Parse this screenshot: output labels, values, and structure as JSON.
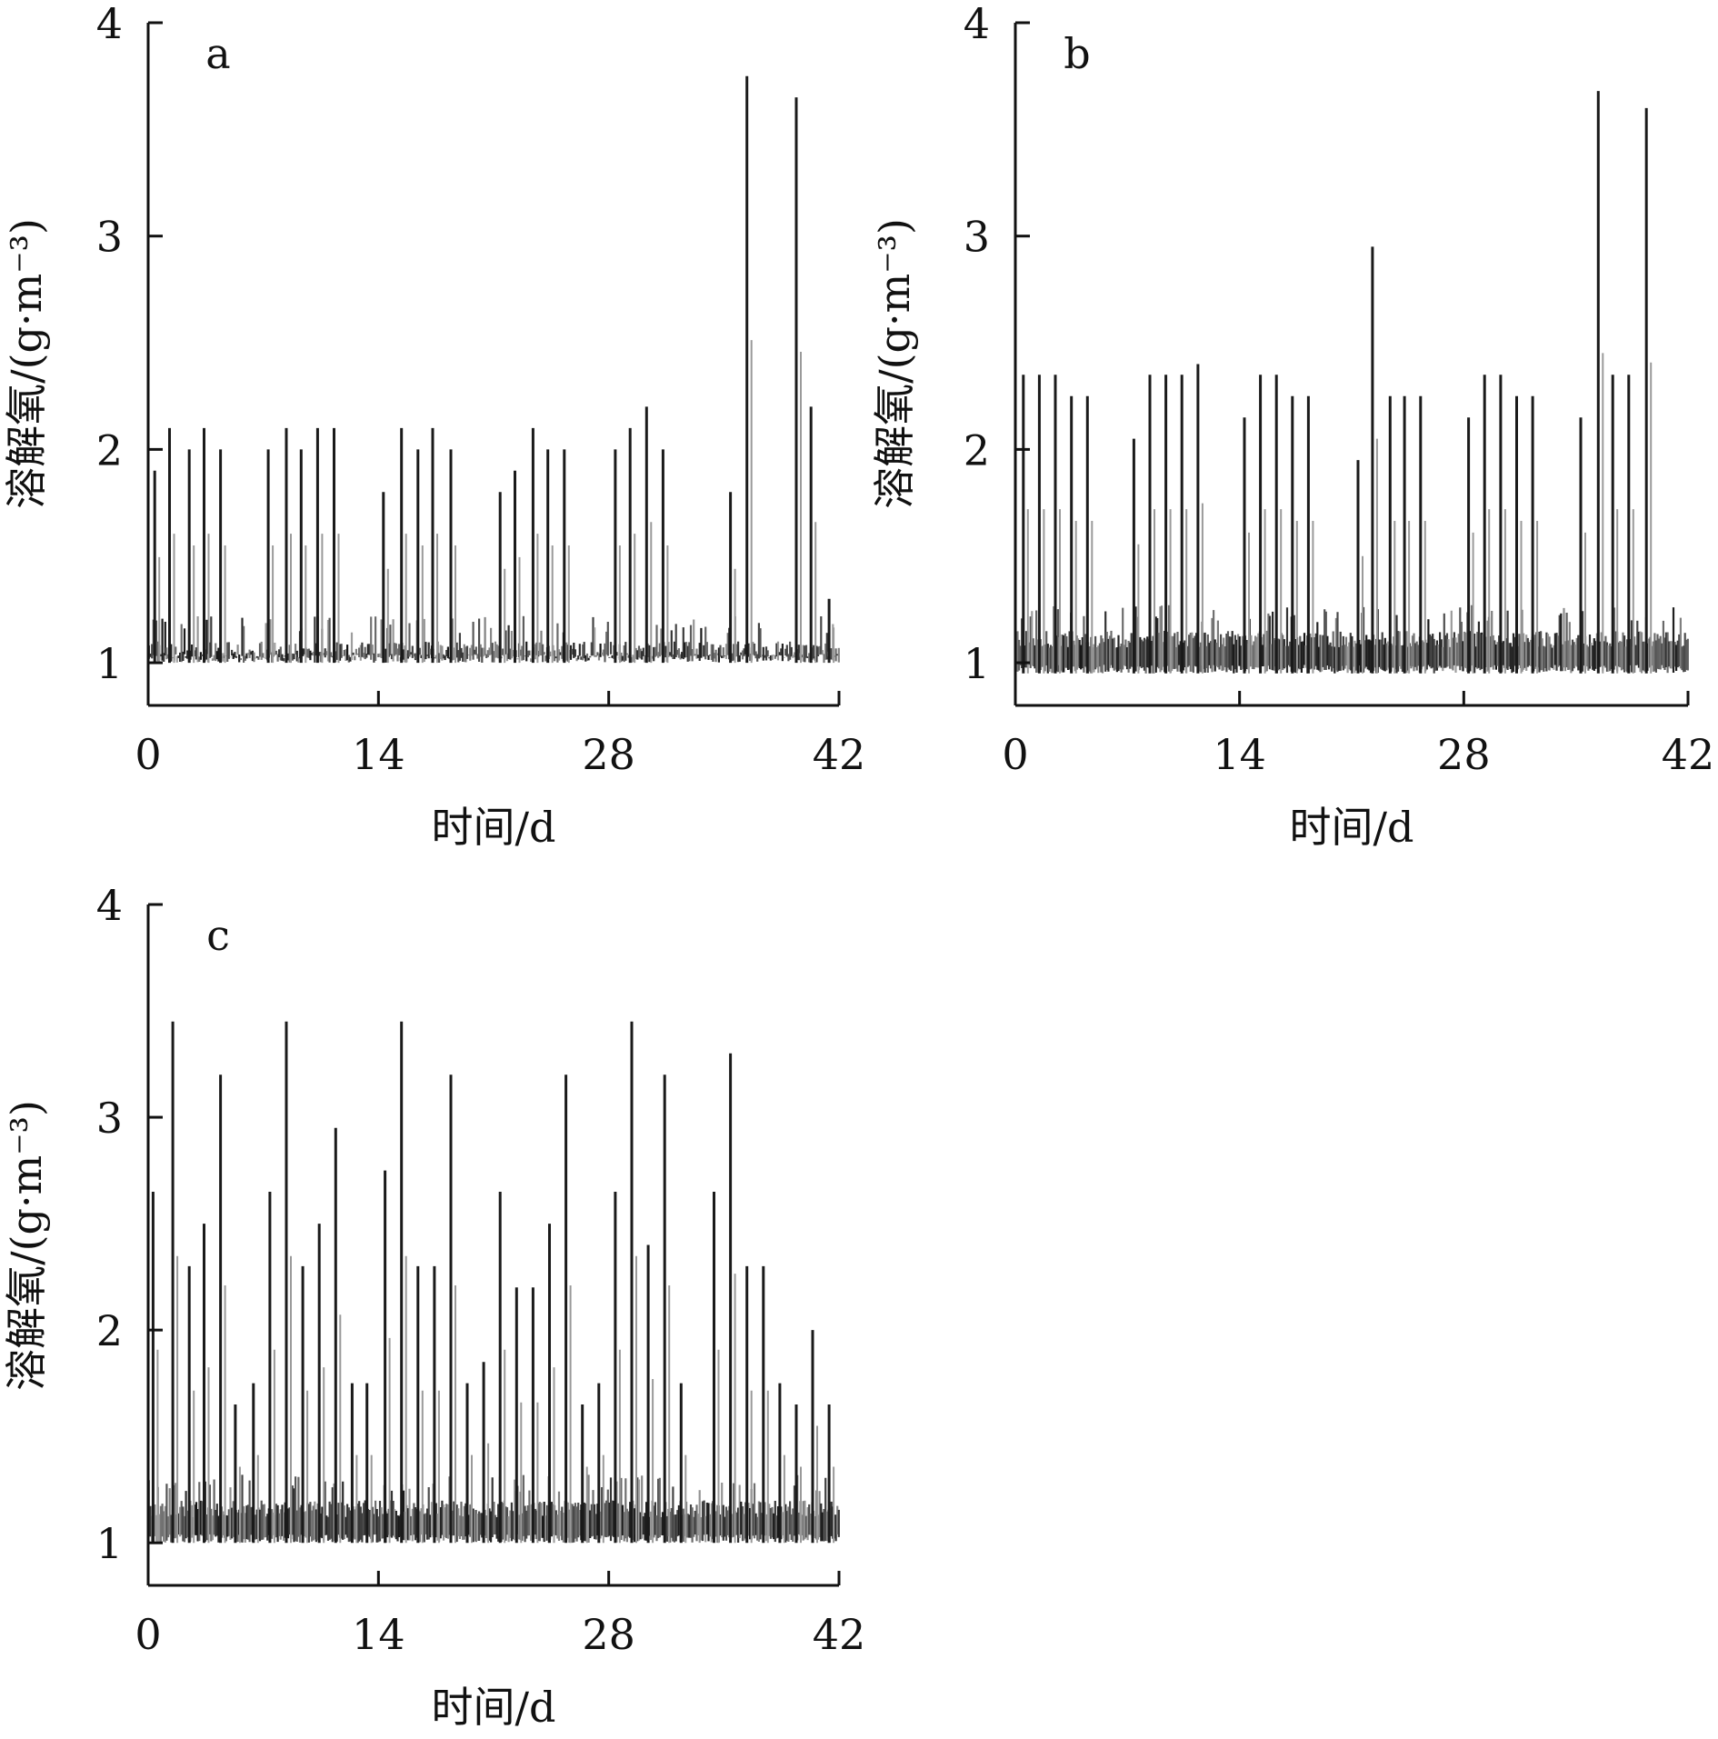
{
  "chart_data": [
    {
      "type": "bar",
      "panel_label": "a",
      "xlabel": "时间/d",
      "ylabel": "溶解氧/(g·m⁻³)",
      "xlim": [
        0,
        42
      ],
      "ylim": [
        0.8,
        4
      ],
      "xticks": [
        0,
        14,
        28,
        42
      ],
      "yticks": [
        1,
        2,
        3,
        4
      ],
      "baseline": 1.0,
      "base_level": 1.1,
      "colors": {
        "ink": "#111111",
        "bar": "#1a1a1a"
      },
      "spikes": [
        {
          "x": 0.4,
          "y": 1.9
        },
        {
          "x": 1.3,
          "y": 2.1
        },
        {
          "x": 2.5,
          "y": 2.0
        },
        {
          "x": 3.4,
          "y": 2.1
        },
        {
          "x": 4.4,
          "y": 2.0
        },
        {
          "x": 7.3,
          "y": 2.0
        },
        {
          "x": 8.4,
          "y": 2.1
        },
        {
          "x": 9.3,
          "y": 2.0
        },
        {
          "x": 10.3,
          "y": 2.1
        },
        {
          "x": 11.3,
          "y": 2.1
        },
        {
          "x": 14.3,
          "y": 1.8
        },
        {
          "x": 15.4,
          "y": 2.1
        },
        {
          "x": 16.4,
          "y": 2.0
        },
        {
          "x": 17.3,
          "y": 2.1
        },
        {
          "x": 18.4,
          "y": 2.0
        },
        {
          "x": 21.4,
          "y": 1.8
        },
        {
          "x": 22.3,
          "y": 1.9
        },
        {
          "x": 23.4,
          "y": 2.1
        },
        {
          "x": 24.3,
          "y": 2.0
        },
        {
          "x": 25.3,
          "y": 2.0
        },
        {
          "x": 28.4,
          "y": 2.0
        },
        {
          "x": 29.3,
          "y": 2.1
        },
        {
          "x": 30.3,
          "y": 2.2
        },
        {
          "x": 31.3,
          "y": 2.0
        },
        {
          "x": 35.4,
          "y": 1.8
        },
        {
          "x": 36.4,
          "y": 3.75
        },
        {
          "x": 39.4,
          "y": 3.65
        },
        {
          "x": 40.3,
          "y": 2.2
        },
        {
          "x": 41.4,
          "y": 1.3
        }
      ]
    },
    {
      "type": "bar",
      "panel_label": "b",
      "xlabel": "时间/d",
      "ylabel": "溶解氧/(g·m⁻³)",
      "xlim": [
        0,
        42
      ],
      "ylim": [
        0.8,
        4
      ],
      "xticks": [
        0,
        14,
        28,
        42
      ],
      "yticks": [
        1,
        2,
        3,
        4
      ],
      "baseline": 0.95,
      "base_level": 1.15,
      "colors": {
        "ink": "#111111",
        "bar": "#1a1a1a"
      },
      "spikes": [
        {
          "x": 0.5,
          "y": 2.35
        },
        {
          "x": 1.5,
          "y": 2.35
        },
        {
          "x": 2.5,
          "y": 2.35
        },
        {
          "x": 3.5,
          "y": 2.25
        },
        {
          "x": 4.5,
          "y": 2.25
        },
        {
          "x": 7.4,
          "y": 2.05
        },
        {
          "x": 8.4,
          "y": 2.35
        },
        {
          "x": 9.4,
          "y": 2.35
        },
        {
          "x": 10.4,
          "y": 2.35
        },
        {
          "x": 11.4,
          "y": 2.4
        },
        {
          "x": 14.3,
          "y": 2.15
        },
        {
          "x": 15.3,
          "y": 2.35
        },
        {
          "x": 16.3,
          "y": 2.35
        },
        {
          "x": 17.3,
          "y": 2.25
        },
        {
          "x": 18.3,
          "y": 2.25
        },
        {
          "x": 21.4,
          "y": 1.95
        },
        {
          "x": 22.3,
          "y": 2.95
        },
        {
          "x": 23.4,
          "y": 2.25
        },
        {
          "x": 24.3,
          "y": 2.25
        },
        {
          "x": 25.3,
          "y": 2.25
        },
        {
          "x": 28.3,
          "y": 2.15
        },
        {
          "x": 29.3,
          "y": 2.35
        },
        {
          "x": 30.3,
          "y": 2.35
        },
        {
          "x": 31.3,
          "y": 2.25
        },
        {
          "x": 32.3,
          "y": 2.25
        },
        {
          "x": 35.3,
          "y": 2.15
        },
        {
          "x": 36.4,
          "y": 3.68
        },
        {
          "x": 37.3,
          "y": 2.35
        },
        {
          "x": 38.3,
          "y": 2.35
        },
        {
          "x": 39.4,
          "y": 3.6
        }
      ]
    },
    {
      "type": "bar",
      "panel_label": "c",
      "xlabel": "时间/d",
      "ylabel": "溶解氧/(g·m⁻³)",
      "xlim": [
        0,
        42
      ],
      "ylim": [
        0.8,
        4
      ],
      "xticks": [
        0,
        14,
        28,
        42
      ],
      "yticks": [
        1,
        2,
        3,
        4
      ],
      "baseline": 1.0,
      "base_level": 1.2,
      "colors": {
        "ink": "#111111",
        "bar": "#1a1a1a"
      },
      "spikes": [
        {
          "x": 0.3,
          "y": 2.65
        },
        {
          "x": 1.5,
          "y": 3.45
        },
        {
          "x": 2.5,
          "y": 2.3
        },
        {
          "x": 3.4,
          "y": 2.5
        },
        {
          "x": 4.4,
          "y": 3.2
        },
        {
          "x": 5.3,
          "y": 1.65
        },
        {
          "x": 6.4,
          "y": 1.75
        },
        {
          "x": 7.4,
          "y": 2.65
        },
        {
          "x": 8.4,
          "y": 3.45
        },
        {
          "x": 9.4,
          "y": 2.3
        },
        {
          "x": 10.4,
          "y": 2.5
        },
        {
          "x": 11.4,
          "y": 2.95
        },
        {
          "x": 12.4,
          "y": 1.75
        },
        {
          "x": 13.3,
          "y": 1.75
        },
        {
          "x": 14.4,
          "y": 2.75
        },
        {
          "x": 15.4,
          "y": 3.45
        },
        {
          "x": 16.4,
          "y": 2.3
        },
        {
          "x": 17.4,
          "y": 2.3
        },
        {
          "x": 18.4,
          "y": 3.2
        },
        {
          "x": 19.4,
          "y": 1.75
        },
        {
          "x": 20.4,
          "y": 1.85
        },
        {
          "x": 21.4,
          "y": 2.65
        },
        {
          "x": 22.4,
          "y": 2.2
        },
        {
          "x": 23.4,
          "y": 2.2
        },
        {
          "x": 24.4,
          "y": 2.5
        },
        {
          "x": 25.4,
          "y": 3.2
        },
        {
          "x": 26.4,
          "y": 1.65
        },
        {
          "x": 27.4,
          "y": 1.75
        },
        {
          "x": 28.4,
          "y": 2.65
        },
        {
          "x": 29.4,
          "y": 3.45
        },
        {
          "x": 30.4,
          "y": 2.4
        },
        {
          "x": 31.4,
          "y": 3.2
        },
        {
          "x": 32.4,
          "y": 1.75
        },
        {
          "x": 34.4,
          "y": 2.65
        },
        {
          "x": 35.4,
          "y": 3.3
        },
        {
          "x": 36.4,
          "y": 2.3
        },
        {
          "x": 37.4,
          "y": 2.3
        },
        {
          "x": 38.4,
          "y": 1.75
        },
        {
          "x": 39.4,
          "y": 1.65
        },
        {
          "x": 40.4,
          "y": 2.0
        },
        {
          "x": 41.4,
          "y": 1.65
        }
      ]
    }
  ]
}
